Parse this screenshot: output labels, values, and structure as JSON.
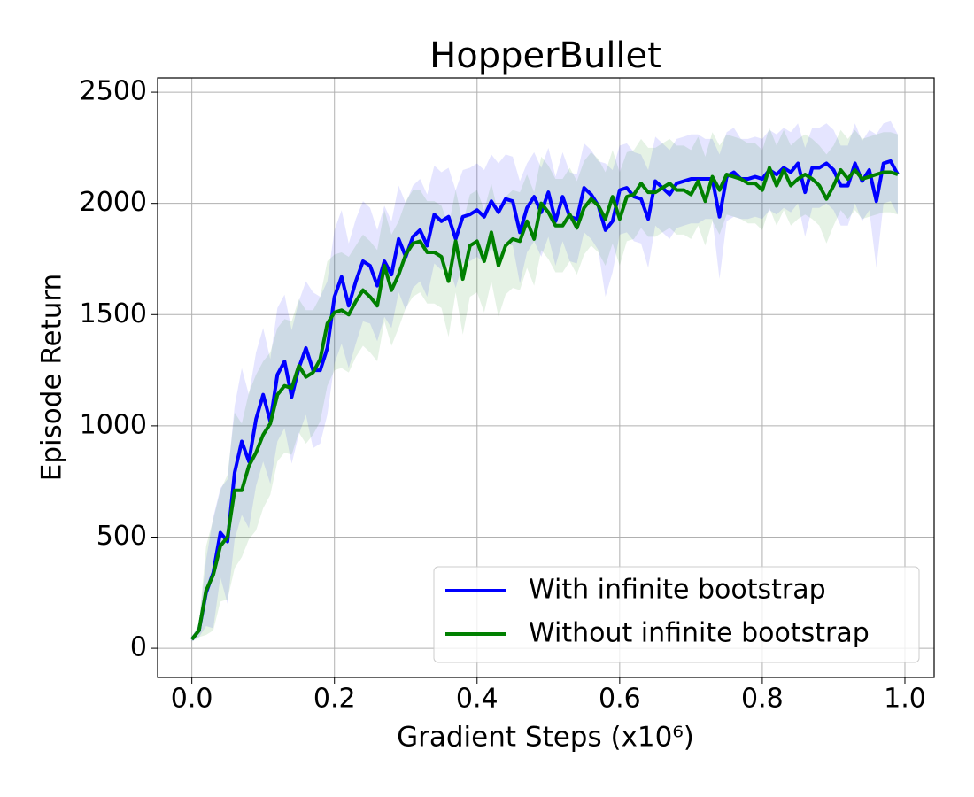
{
  "chart_data": {
    "type": "line",
    "title": "HopperBullet",
    "xlabel": "Gradient Steps (x10⁶)",
    "ylabel": "Episode Return",
    "xlim": [
      -0.048,
      1.041
    ],
    "ylim": [
      -131,
      2564
    ],
    "xticks": [
      {
        "value": 0,
        "label": "0.0"
      },
      0.2,
      0.4,
      0.6,
      0.8,
      {
        "value": 1,
        "label": "1.0"
      }
    ],
    "yticks": [
      0,
      500,
      1000,
      1500,
      2000,
      2500
    ],
    "grid": true,
    "legend": "lower right",
    "x": [
      0,
      0.01,
      0.02,
      0.03,
      0.04,
      0.05,
      0.06,
      0.07,
      0.08,
      0.09,
      0.1,
      0.11,
      0.12,
      0.13,
      0.14,
      0.15,
      0.16,
      0.17,
      0.18,
      0.19,
      0.2,
      0.21,
      0.22,
      0.23,
      0.24,
      0.25,
      0.26,
      0.27,
      0.28,
      0.29,
      0.3,
      0.31,
      0.32,
      0.33,
      0.34,
      0.35,
      0.36,
      0.37,
      0.38,
      0.39,
      0.4,
      0.41,
      0.42,
      0.43,
      0.44,
      0.45,
      0.46,
      0.47,
      0.48,
      0.49,
      0.5,
      0.51,
      0.52,
      0.53,
      0.54,
      0.55,
      0.56,
      0.57,
      0.58,
      0.59,
      0.6,
      0.61,
      0.62,
      0.63,
      0.64,
      0.65,
      0.66,
      0.67,
      0.68,
      0.69,
      0.7,
      0.71,
      0.72,
      0.73,
      0.74,
      0.75,
      0.76,
      0.77,
      0.78,
      0.79,
      0.8,
      0.81,
      0.82,
      0.83,
      0.84,
      0.85,
      0.86,
      0.87,
      0.88,
      0.89,
      0.9,
      0.91,
      0.92,
      0.93,
      0.94,
      0.95,
      0.96,
      0.97,
      0.98,
      0.99
    ],
    "series": [
      {
        "name": "With infinite bootstrap",
        "color": "#0000ff",
        "values": [
          40,
          80,
          250,
          340,
          520,
          480,
          790,
          930,
          840,
          1030,
          1140,
          1020,
          1230,
          1290,
          1130,
          1260,
          1350,
          1250,
          1250,
          1350,
          1580,
          1670,
          1540,
          1650,
          1740,
          1720,
          1630,
          1740,
          1680,
          1840,
          1760,
          1850,
          1880,
          1810,
          1950,
          1920,
          1940,
          1840,
          1940,
          1950,
          1970,
          1940,
          2010,
          1960,
          2020,
          2010,
          1870,
          1980,
          2030,
          1960,
          2050,
          1920,
          2030,
          1940,
          1930,
          2070,
          2040,
          1990,
          1880,
          1920,
          2060,
          2070,
          2030,
          2020,
          1930,
          2100,
          2070,
          2040,
          2090,
          2100,
          2110,
          2110,
          2110,
          2110,
          1940,
          2120,
          2140,
          2110,
          2110,
          2120,
          2110,
          2150,
          2130,
          2160,
          2140,
          2180,
          2050,
          2160,
          2160,
          2180,
          2150,
          2080,
          2080,
          2180,
          2100,
          2150,
          2010,
          2180,
          2190,
          2130
        ],
        "errors": [
          10,
          30,
          150,
          250,
          200,
          280,
          300,
          330,
          300,
          300,
          300,
          280,
          300,
          300,
          300,
          300,
          300,
          350,
          330,
          300,
          300,
          300,
          280,
          280,
          270,
          260,
          250,
          250,
          240,
          240,
          240,
          230,
          230,
          230,
          220,
          220,
          220,
          220,
          210,
          210,
          210,
          210,
          210,
          220,
          200,
          200,
          230,
          200,
          200,
          200,
          200,
          200,
          200,
          200,
          200,
          200,
          200,
          200,
          300,
          230,
          200,
          200,
          200,
          200,
          220,
          200,
          200,
          200,
          200,
          200,
          200,
          200,
          180,
          180,
          280,
          200,
          200,
          180,
          180,
          180,
          180,
          180,
          180,
          180,
          180,
          180,
          200,
          180,
          180,
          180,
          180,
          180,
          180,
          180,
          180,
          180,
          300,
          180,
          180,
          180
        ]
      },
      {
        "name": "Without infinite bootstrap",
        "color": "#008000",
        "values": [
          40,
          80,
          260,
          330,
          460,
          500,
          710,
          710,
          820,
          880,
          960,
          1010,
          1140,
          1180,
          1170,
          1270,
          1220,
          1240,
          1300,
          1460,
          1510,
          1520,
          1500,
          1560,
          1610,
          1580,
          1540,
          1720,
          1610,
          1680,
          1770,
          1820,
          1830,
          1780,
          1780,
          1760,
          1650,
          1830,
          1660,
          1810,
          1830,
          1740,
          1870,
          1720,
          1810,
          1840,
          1830,
          1920,
          1840,
          2000,
          1960,
          1900,
          1900,
          1950,
          1890,
          1980,
          2020,
          1990,
          1930,
          2030,
          1930,
          2030,
          2040,
          2090,
          2050,
          2050,
          2070,
          2090,
          2060,
          2060,
          2040,
          2100,
          2010,
          2120,
          2060,
          2130,
          2120,
          2110,
          2090,
          2090,
          2060,
          2160,
          2080,
          2150,
          2080,
          2110,
          2130,
          2110,
          2080,
          2020,
          2080,
          2150,
          2110,
          2150,
          2110,
          2120,
          2130,
          2140,
          2140,
          2130
        ],
        "errors": [
          10,
          30,
          200,
          250,
          250,
          280,
          350,
          300,
          330,
          350,
          330,
          320,
          300,
          300,
          300,
          300,
          300,
          280,
          280,
          280,
          260,
          260,
          260,
          250,
          250,
          250,
          250,
          250,
          250,
          240,
          240,
          240,
          230,
          230,
          230,
          230,
          250,
          230,
          250,
          230,
          230,
          230,
          220,
          230,
          220,
          220,
          220,
          210,
          210,
          210,
          210,
          210,
          210,
          210,
          210,
          210,
          210,
          210,
          210,
          210,
          210,
          200,
          200,
          200,
          200,
          200,
          200,
          200,
          200,
          200,
          200,
          200,
          200,
          200,
          200,
          180,
          180,
          180,
          180,
          180,
          180,
          180,
          180,
          180,
          180,
          180,
          180,
          180,
          180,
          200,
          180,
          180,
          180,
          180,
          180,
          180,
          180,
          180,
          180,
          180
        ]
      }
    ]
  }
}
